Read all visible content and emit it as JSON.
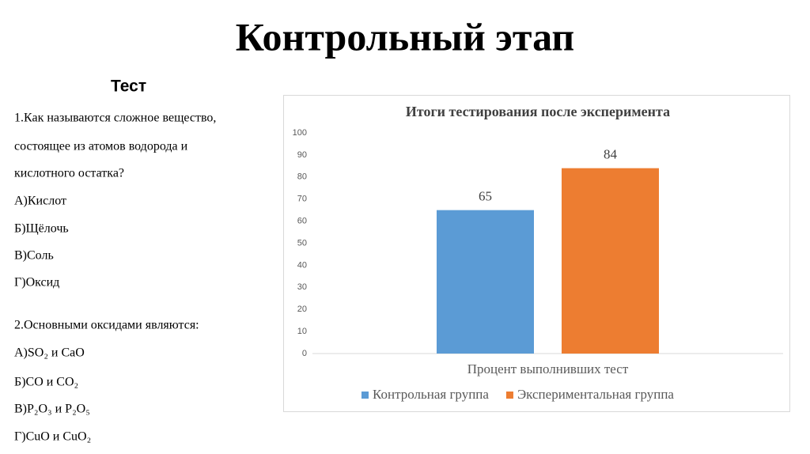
{
  "title": "Контрольный этап",
  "subtitle": "Тест",
  "questions": [
    {
      "lines": [
        "1.Как называются сложное вещество,",
        "состоящее из атомов водорода и",
        "кислотного остатка?"
      ],
      "options": [
        "А)Кислот",
        "Б)Щёлочь",
        "В)Соль",
        "Г)Оксид"
      ]
    },
    {
      "lines": [
        "2.Основными оксидами являются:"
      ],
      "options": [
        "А)SO₂ и CaO",
        "Б)CO и CO₂",
        "В)P₂O₃ и P₂O₅",
        "Г)CuO и CuO₂"
      ]
    }
  ],
  "chart_data": {
    "type": "bar",
    "title": "Итоги тестирования после эксперимента",
    "categories": [
      "Процент выполнивших тест"
    ],
    "series": [
      {
        "name": "Контрольная группа",
        "color": "#5b9bd5",
        "values": [
          65
        ]
      },
      {
        "name": "Экспериментальная группа",
        "color": "#ed7d31",
        "values": [
          84
        ]
      }
    ],
    "ylim": [
      0,
      100
    ],
    "yticks": [
      0,
      10,
      20,
      30,
      40,
      50,
      60,
      70,
      80,
      90,
      100
    ],
    "legend": "bottom"
  }
}
